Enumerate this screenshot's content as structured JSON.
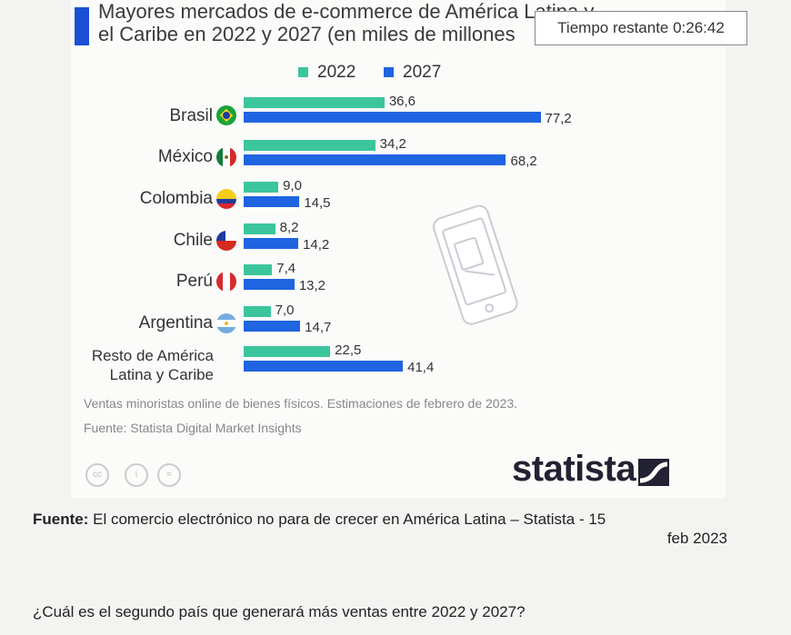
{
  "chart_title": "Mayores mercados de e-commerce de América Latina y\nel Caribe en 2022 y 2027 (en miles de millones",
  "timer": {
    "label": "Tiempo restante",
    "value": "0:26:42",
    "text": "Tiempo restante 0:26:42"
  },
  "colors": {
    "2022": "#3cc59c",
    "2027": "#1f64e0",
    "accent": "#1a4fd6"
  },
  "chart_data": {
    "type": "bar",
    "orientation": "horizontal",
    "title": "Mayores mercados de e-commerce de América Latina y el Caribe en 2022 y 2027 (en miles de millones",
    "categories": [
      "Brasil",
      "México",
      "Colombia",
      "Chile",
      "Perú",
      "Argentina",
      "Resto de América Latina y Caribe"
    ],
    "series": [
      {
        "name": "2022",
        "values": [
          36.6,
          34.2,
          9.0,
          8.2,
          7.4,
          7.0,
          22.5
        ],
        "labels": [
          "36,6",
          "34,2",
          "9,0",
          "8,2",
          "7,4",
          "7,0",
          "22,5"
        ]
      },
      {
        "name": "2027",
        "values": [
          77.2,
          68.2,
          14.5,
          14.2,
          13.2,
          14.7,
          41.4
        ],
        "labels": [
          "77,2",
          "68,2",
          "14,5",
          "14,2",
          "13,2",
          "14,7",
          "41,4"
        ]
      }
    ],
    "legend_position": "top",
    "grid": false
  },
  "category_labels": {
    "brasil": "Brasil",
    "mexico": "México",
    "colombia": "Colombia",
    "chile": "Chile",
    "peru": "Perú",
    "argentina": "Argentina",
    "resto_line1": "Resto de América",
    "resto_line2": "Latina y Caribe"
  },
  "legend": {
    "label_2022": "2022",
    "label_2027": "2027"
  },
  "note": "Ventas minoristas online de bienes físicos. Estimaciones de febrero de 2023.",
  "chart_source": "Fuente: Statista Digital Market Insights",
  "license_icons": {
    "cc": "cc",
    "info": "i",
    "equals": "="
  },
  "brand": "statista",
  "source_citation": {
    "label": "Fuente:",
    "text": " El comercio electrónico no para de crecer en América Latina – Statista - 15",
    "date": "feb 2023"
  },
  "question": "¿Cuál es el segundo país que generará más ventas entre 2022 y 2027?"
}
